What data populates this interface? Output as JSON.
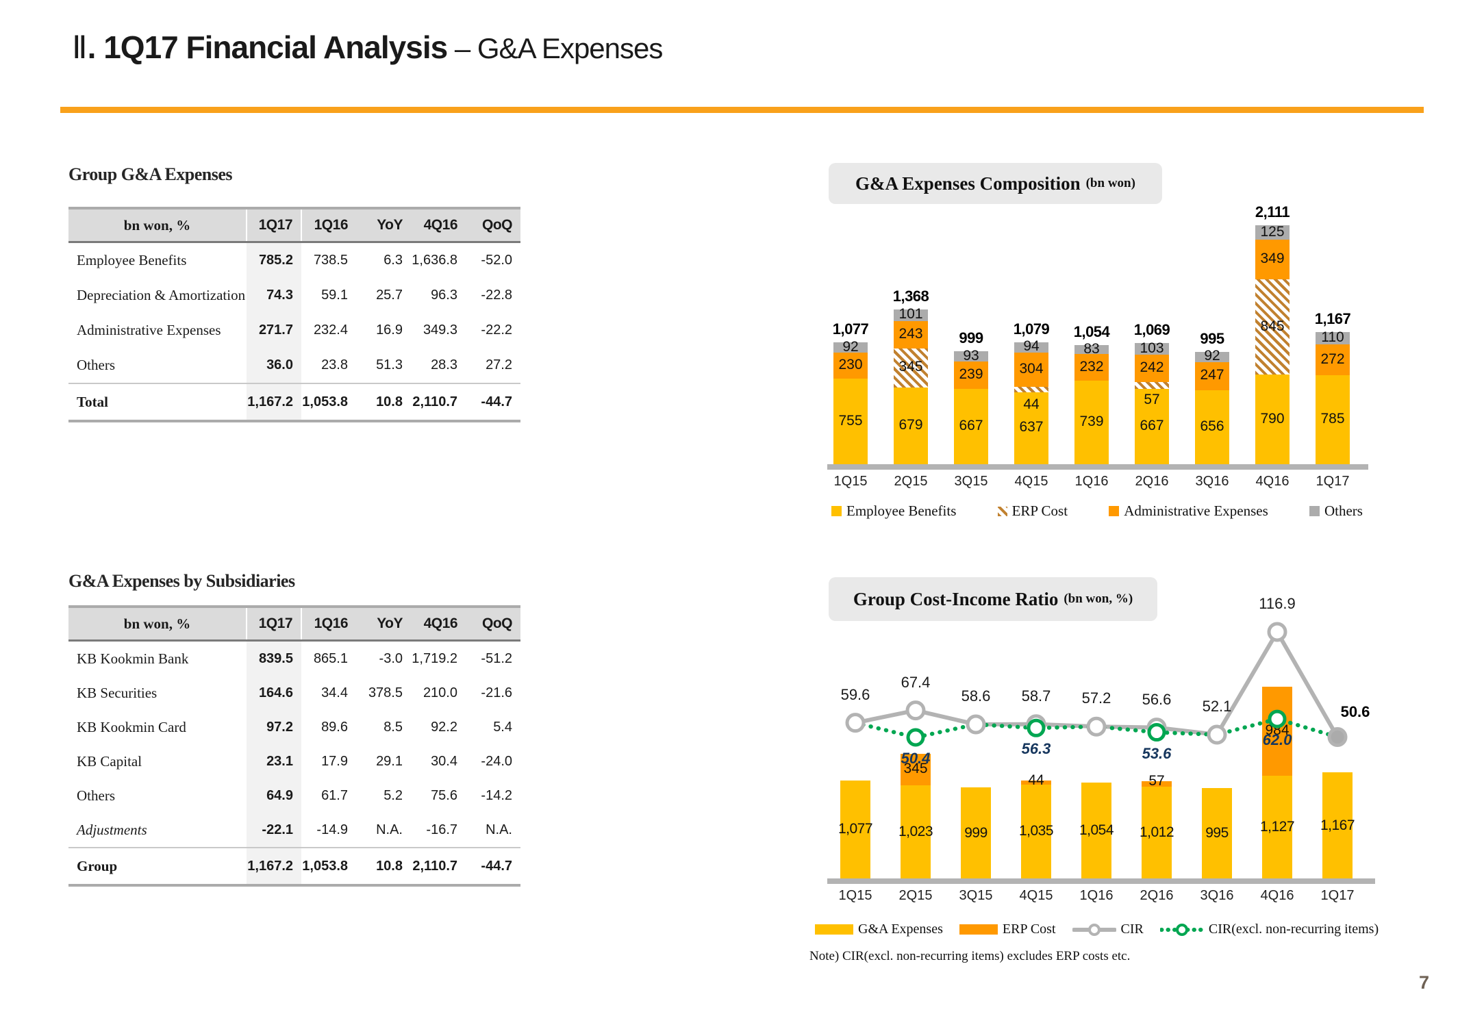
{
  "header": {
    "numeral": "Ⅱ",
    "title_bold": ". 1Q17 Financial Analysis",
    "title_rest": " – G&A Expenses",
    "rule_color": "#F9A11B"
  },
  "page_number": "7",
  "palette": {
    "yellow": "#FFC000",
    "orange": "#FF9900",
    "hatch_brown": "#C1812F",
    "gray_others": "#ACACAC",
    "cir_gray": "#B3B3B3",
    "cir_green": "#00A651",
    "navy_label": "#17375E",
    "header_gray": "#DBDBDB",
    "highlight_col": "#F2F2F2"
  },
  "tables": [
    {
      "name": "group-gna-expenses-table",
      "title": "Group G&A Expenses",
      "columns": [
        "bn won, %",
        "1Q17",
        "1Q16",
        "YoY",
        "4Q16",
        "QoQ"
      ],
      "highlight_column": 1,
      "rows": [
        {
          "label": "Employee Benefits",
          "values": [
            "785.2",
            "738.5",
            "6.3",
            "1,636.8",
            "-52.0"
          ]
        },
        {
          "label": "Depreciation & Amortization",
          "values": [
            "74.3",
            "59.1",
            "25.7",
            "96.3",
            "-22.8"
          ]
        },
        {
          "label": "Administrative Expenses",
          "values": [
            "271.7",
            "232.4",
            "16.9",
            "349.3",
            "-22.2"
          ]
        },
        {
          "label": "Others",
          "values": [
            "36.0",
            "23.8",
            "51.3",
            "28.3",
            "27.2"
          ]
        },
        {
          "label": "Total",
          "values": [
            "1,167.2",
            "1,053.8",
            "10.8",
            "2,110.7",
            "-44.7"
          ],
          "emphasis": "total"
        }
      ]
    },
    {
      "name": "gna-expenses-by-subsidiaries-table",
      "title": "G&A Expenses by Subsidiaries",
      "columns": [
        "bn won, %",
        "1Q17",
        "1Q16",
        "YoY",
        "4Q16",
        "QoQ"
      ],
      "highlight_column": 1,
      "rows": [
        {
          "label": "KB Kookmin Bank",
          "values": [
            "839.5",
            "865.1",
            "-3.0",
            "1,719.2",
            "-51.2"
          ]
        },
        {
          "label": "KB Securities",
          "values": [
            "164.6",
            "34.4",
            "378.5",
            "210.0",
            "-21.6"
          ]
        },
        {
          "label": "KB Kookmin Card",
          "values": [
            "97.2",
            "89.6",
            "8.5",
            "92.2",
            "5.4"
          ]
        },
        {
          "label": "KB Capital",
          "values": [
            "23.1",
            "17.9",
            "29.1",
            "30.4",
            "-24.0"
          ]
        },
        {
          "label": "Others",
          "values": [
            "64.9",
            "61.7",
            "5.2",
            "75.6",
            "-14.2"
          ]
        },
        {
          "label": "Adjustments",
          "values": [
            "-22.1",
            "-14.9",
            "N.A.",
            "-16.7",
            "N.A."
          ],
          "emphasis": "italic"
        },
        {
          "label": "Group",
          "values": [
            "1,167.2",
            "1,053.8",
            "10.8",
            "2,110.7",
            "-44.7"
          ],
          "emphasis": "total"
        }
      ]
    }
  ],
  "chart_data": [
    {
      "type": "bar",
      "stacked": true,
      "title": "G&A Expenses Composition",
      "title_unit": "(bn won)",
      "categories": [
        "1Q15",
        "2Q15",
        "3Q15",
        "4Q15",
        "1Q16",
        "2Q16",
        "3Q16",
        "4Q16",
        "1Q17"
      ],
      "series": [
        {
          "name": "Employee Benefits",
          "style": "solid",
          "color": "#FFC000",
          "values": [
            755,
            679,
            667,
            637,
            739,
            667,
            656,
            790,
            785
          ]
        },
        {
          "name": "ERP Cost",
          "style": "hatch",
          "color": "#C1812F",
          "values": [
            0,
            345,
            0,
            44,
            0,
            57,
            0,
            845,
            0
          ]
        },
        {
          "name": "Administrative Expenses",
          "style": "solid",
          "color": "#FF9900",
          "values": [
            230,
            243,
            239,
            304,
            232,
            242,
            247,
            349,
            272
          ]
        },
        {
          "name": "Others",
          "style": "solid",
          "color": "#ACACAC",
          "values": [
            92,
            101,
            93,
            94,
            83,
            103,
            92,
            125,
            110
          ]
        }
      ],
      "totals": [
        "1,077",
        "1,368",
        "999",
        "1,079",
        "1,054",
        "1,069",
        "995",
        "2,111",
        "1,167"
      ],
      "legend_position": "bottom",
      "grid": false
    },
    {
      "type": "combo",
      "title": "Group Cost-Income Ratio",
      "title_unit": "(bn won, %)",
      "categories": [
        "1Q15",
        "2Q15",
        "3Q15",
        "4Q15",
        "1Q16",
        "2Q16",
        "3Q16",
        "4Q16",
        "1Q17"
      ],
      "bars": [
        {
          "name": "G&A Expenses",
          "color": "#FFC000",
          "values": [
            1077,
            1023,
            999,
            1035,
            1054,
            1012,
            995,
            1127,
            1167
          ],
          "labels": [
            "1,077",
            "1,023",
            "999",
            "1,035",
            "1,054",
            "1,012",
            "995",
            "1,127",
            "1,167"
          ]
        },
        {
          "name": "ERP Cost",
          "color": "#FF9900",
          "values": [
            0,
            345,
            0,
            44,
            0,
            57,
            0,
            984,
            0
          ]
        }
      ],
      "lines": [
        {
          "name": "CIR",
          "color": "#B3B3B3",
          "style": "solid",
          "values": [
            59.6,
            67.4,
            58.6,
            58.7,
            57.2,
            56.6,
            52.1,
            116.9,
            50.6
          ]
        },
        {
          "name": "CIR(excl. non-recurring items)",
          "color": "#00A651",
          "style": "dotted",
          "values": [
            59.6,
            50.4,
            58.6,
            56.3,
            57.2,
            53.6,
            52.1,
            62.0,
            50.6
          ],
          "labels": [
            null,
            "50.4",
            null,
            "56.3",
            null,
            "53.6",
            null,
            "62.0",
            null
          ],
          "label_color": "#17375E"
        }
      ],
      "note": "Note) CIR(excl. non-recurring  items)  excludes  ERP costs etc.",
      "legend_position": "bottom",
      "grid": false
    }
  ]
}
